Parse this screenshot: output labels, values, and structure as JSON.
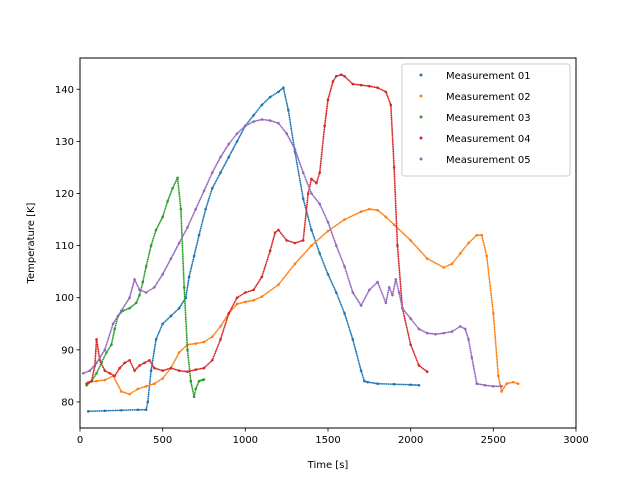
{
  "chart_data": {
    "type": "scatter",
    "title": "",
    "xlabel": "Time [s]",
    "ylabel": "Temperature [K]",
    "xlim": [
      0,
      3000
    ],
    "ylim": [
      75,
      146
    ],
    "xticks": [
      0,
      500,
      1000,
      1500,
      2000,
      2500,
      3000
    ],
    "yticks": [
      80,
      90,
      100,
      110,
      120,
      130,
      140
    ],
    "grid": false,
    "legend": "top-right",
    "series": [
      {
        "name": "Measurement 01",
        "color": "#1f77b4",
        "x": [
          50,
          150,
          250,
          350,
          400,
          410,
          430,
          460,
          500,
          550,
          600,
          640,
          660,
          690,
          720,
          760,
          800,
          850,
          900,
          950,
          1000,
          1050,
          1100,
          1150,
          1200,
          1230,
          1260,
          1300,
          1350,
          1400,
          1450,
          1500,
          1550,
          1600,
          1650,
          1700,
          1720,
          1740,
          1800,
          1900,
          2000,
          2050
        ],
        "y": [
          78.2,
          78.3,
          78.4,
          78.5,
          78.5,
          80,
          86,
          92,
          95,
          96.5,
          98,
          100,
          104,
          108,
          112,
          117,
          121,
          124,
          127,
          130,
          133,
          135,
          137,
          138.5,
          139.5,
          140.3,
          136,
          128,
          119,
          113,
          108.5,
          104.5,
          101,
          97,
          92,
          86,
          84,
          83.8,
          83.5,
          83.4,
          83.3,
          83.2
        ]
      },
      {
        "name": "Measurement 02",
        "color": "#ff7f0e",
        "x": [
          50,
          100,
          150,
          200,
          250,
          300,
          350,
          400,
          450,
          500,
          550,
          600,
          650,
          700,
          750,
          800,
          850,
          900,
          950,
          1000,
          1050,
          1100,
          1200,
          1300,
          1400,
          1500,
          1600,
          1700,
          1750,
          1800,
          1850,
          1900,
          2000,
          2100,
          2200,
          2250,
          2300,
          2350,
          2400,
          2430,
          2460,
          2500,
          2530,
          2550,
          2580,
          2620,
          2650
        ],
        "y": [
          83.8,
          84,
          84.2,
          85,
          82,
          81.5,
          82.5,
          83,
          83.5,
          84.5,
          86.5,
          89.5,
          91,
          91.2,
          91.5,
          92.5,
          94.5,
          97,
          98.8,
          99.2,
          99.5,
          100.2,
          102.5,
          106.5,
          110,
          112.8,
          115,
          116.5,
          117,
          116.8,
          115.5,
          114,
          111,
          107.5,
          105.8,
          106.5,
          108.5,
          110.5,
          112,
          112,
          108,
          97,
          85,
          82,
          83.5,
          83.8,
          83.5
        ]
      },
      {
        "name": "Measurement 03",
        "color": "#2ca02c",
        "x": [
          40,
          70,
          100,
          130,
          160,
          190,
          210,
          230,
          260,
          300,
          340,
          360,
          380,
          400,
          430,
          460,
          500,
          530,
          560,
          590,
          610,
          630,
          650,
          670,
          690,
          700,
          720,
          740,
          750
        ],
        "y": [
          83.2,
          84,
          85.5,
          87.5,
          89.5,
          91,
          94,
          96.5,
          97.5,
          98,
          99,
          100.5,
          103,
          106,
          110,
          113,
          115.5,
          118.5,
          121,
          123,
          117,
          102,
          90,
          84,
          81,
          82.5,
          84,
          84.2,
          84.3
        ]
      },
      {
        "name": "Measurement 04",
        "color": "#d62728",
        "x": [
          40,
          70,
          90,
          100,
          120,
          150,
          180,
          210,
          240,
          270,
          300,
          330,
          360,
          390,
          420,
          450,
          500,
          550,
          600,
          650,
          700,
          750,
          800,
          850,
          900,
          950,
          1000,
          1050,
          1100,
          1150,
          1180,
          1200,
          1250,
          1300,
          1350,
          1380,
          1400,
          1430,
          1450,
          1480,
          1500,
          1530,
          1550,
          1580,
          1600,
          1650,
          1700,
          1750,
          1800,
          1850,
          1880,
          1900,
          1920,
          1950,
          2000,
          2050,
          2100
        ],
        "y": [
          83.5,
          84,
          87,
          92,
          88,
          86,
          85.5,
          85,
          86.5,
          87.5,
          88,
          86,
          87,
          87.5,
          88,
          86.5,
          86,
          86.5,
          86,
          85.8,
          86.2,
          86.5,
          88,
          92,
          97,
          100,
          101,
          101.5,
          104,
          109,
          112.5,
          113,
          111,
          110.5,
          111,
          120,
          122.8,
          122,
          124,
          133,
          138,
          141.5,
          142.5,
          142.8,
          142.5,
          141,
          140.8,
          140.6,
          140.3,
          139.5,
          137,
          125,
          110,
          98,
          91,
          87,
          85.8
        ]
      },
      {
        "name": "Measurement 05",
        "color": "#9467bd",
        "x": [
          20,
          60,
          100,
          150,
          200,
          250,
          300,
          330,
          360,
          400,
          450,
          500,
          550,
          600,
          650,
          700,
          750,
          800,
          850,
          900,
          950,
          1000,
          1050,
          1100,
          1150,
          1200,
          1250,
          1300,
          1350,
          1400,
          1450,
          1500,
          1550,
          1600,
          1650,
          1700,
          1750,
          1800,
          1850,
          1870,
          1890,
          1910,
          1930,
          1950,
          2000,
          2050,
          2100,
          2150,
          2200,
          2250,
          2300,
          2330,
          2350,
          2370,
          2400,
          2450,
          2500,
          2550
        ],
        "y": [
          85.5,
          86,
          87.5,
          90,
          95,
          97.5,
          100,
          103.5,
          101.5,
          101,
          102,
          104.5,
          107.5,
          110.5,
          113.5,
          117,
          120.5,
          124,
          127,
          129.5,
          131.5,
          133,
          133.8,
          134.2,
          134,
          133.5,
          131.5,
          128.5,
          124,
          120,
          118,
          114.5,
          110,
          106,
          101,
          98.5,
          101.5,
          103,
          99,
          102,
          100.5,
          103.5,
          101,
          98,
          96,
          94,
          93.2,
          93,
          93.2,
          93.5,
          94.5,
          94,
          92,
          88.5,
          83.5,
          83.2,
          83,
          83
        ]
      }
    ]
  }
}
